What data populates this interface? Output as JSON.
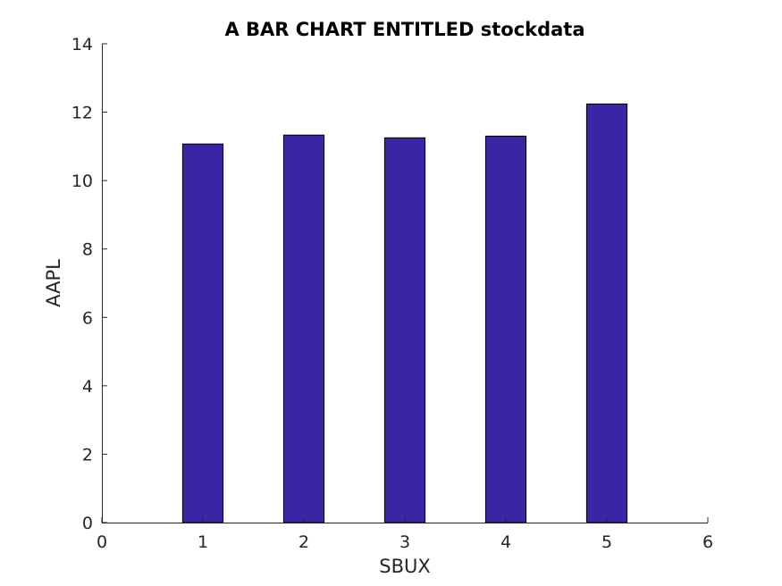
{
  "chart_data": {
    "type": "bar",
    "title": "A BAR CHART ENTITLED stockdata",
    "xlabel": "SBUX",
    "ylabel": "AAPL",
    "x": [
      1,
      2,
      3,
      4,
      5
    ],
    "values": [
      11.07,
      11.33,
      11.25,
      11.3,
      12.24
    ],
    "xlim": [
      0,
      6
    ],
    "ylim": [
      0,
      14
    ],
    "xticks": [
      "0",
      "1",
      "2",
      "3",
      "4",
      "5",
      "6"
    ],
    "yticks": [
      "0",
      "2",
      "4",
      "6",
      "8",
      "10",
      "12",
      "14"
    ],
    "bar_color": "#3a25a5",
    "grid": false,
    "legend": "none"
  }
}
